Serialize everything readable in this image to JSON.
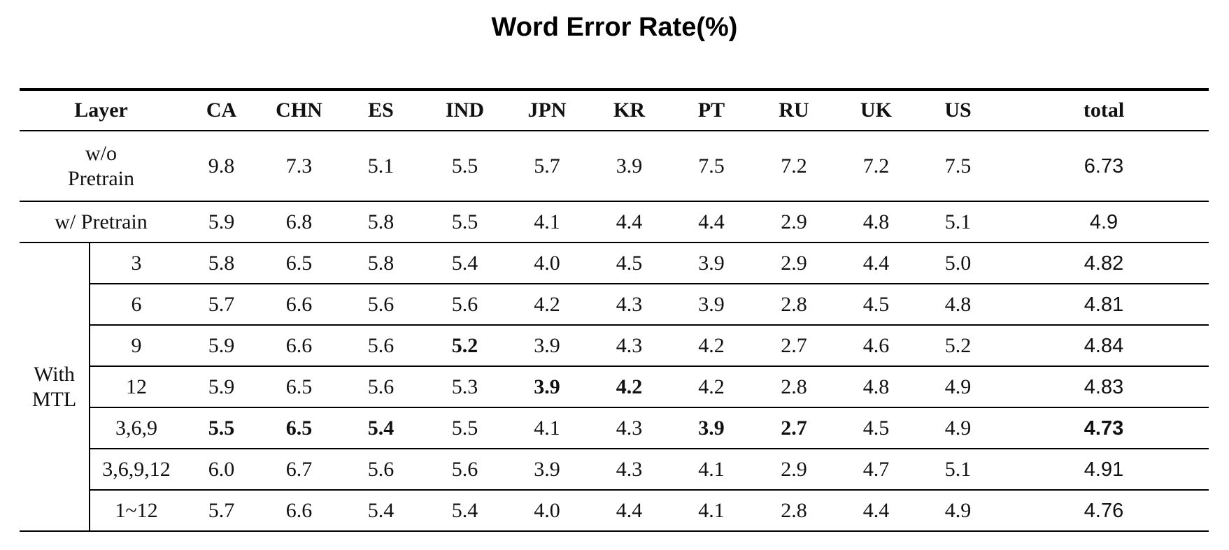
{
  "title": "Word Error Rate(%)",
  "columns": [
    "Layer",
    "CA",
    "CHN",
    "ES",
    "IND",
    "JPN",
    "KR",
    "PT",
    "RU",
    "UK",
    "US",
    "total"
  ],
  "baseline_rows": [
    {
      "label_line1": "w/o",
      "label_line2": "Pretrain",
      "values": [
        "9.8",
        "7.3",
        "5.1",
        "5.5",
        "5.7",
        "3.9",
        "7.5",
        "7.2",
        "7.2",
        "7.5",
        "6.73"
      ]
    },
    {
      "label": "w/ Pretrain",
      "values": [
        "5.9",
        "6.8",
        "5.8",
        "5.5",
        "4.1",
        "4.4",
        "4.4",
        "2.9",
        "4.8",
        "5.1",
        "4.9"
      ]
    }
  ],
  "mtl_group": {
    "label_line1": "With",
    "label_line2": "MTL",
    "rows": [
      {
        "layer": "3",
        "values": [
          "5.8",
          "6.5",
          "5.8",
          "5.4",
          "4.0",
          "4.5",
          "3.9",
          "2.9",
          "4.4",
          "5.0",
          "4.82"
        ]
      },
      {
        "layer": "6",
        "values": [
          "5.7",
          "6.6",
          "5.6",
          "5.6",
          "4.2",
          "4.3",
          "3.9",
          "2.8",
          "4.5",
          "4.8",
          "4.81"
        ]
      },
      {
        "layer": "9",
        "values": [
          "5.9",
          "6.6",
          "5.6",
          "5.2",
          "3.9",
          "4.3",
          "4.2",
          "2.7",
          "4.6",
          "5.2",
          "4.84"
        ]
      },
      {
        "layer": "12",
        "values": [
          "5.9",
          "6.5",
          "5.6",
          "5.3",
          "3.9",
          "4.2",
          "4.2",
          "2.8",
          "4.8",
          "4.9",
          "4.83"
        ]
      },
      {
        "layer": "3,6,9",
        "values": [
          "5.5",
          "6.5",
          "5.4",
          "5.5",
          "4.1",
          "4.3",
          "3.9",
          "2.7",
          "4.5",
          "4.9",
          "4.73"
        ]
      },
      {
        "layer": "3,6,9,12",
        "values": [
          "6.0",
          "6.7",
          "5.6",
          "5.6",
          "3.9",
          "4.3",
          "4.1",
          "2.9",
          "4.7",
          "5.1",
          "4.91"
        ]
      },
      {
        "layer": "1~12",
        "values": [
          "5.7",
          "6.6",
          "5.4",
          "5.4",
          "4.0",
          "4.4",
          "4.1",
          "2.8",
          "4.4",
          "4.9",
          "4.76"
        ]
      }
    ]
  },
  "bold_cells": [
    {
      "row": "9",
      "column": "IND"
    },
    {
      "row": "12",
      "column": "JPN"
    },
    {
      "row": "12",
      "column": "KR"
    },
    {
      "row": "3,6,9",
      "column": "CA"
    },
    {
      "row": "3,6,9",
      "column": "CHN"
    },
    {
      "row": "3,6,9",
      "column": "ES"
    },
    {
      "row": "3,6,9",
      "column": "PT"
    },
    {
      "row": "3,6,9",
      "column": "RU"
    },
    {
      "row": "3,6,9",
      "column": "total"
    }
  ]
}
